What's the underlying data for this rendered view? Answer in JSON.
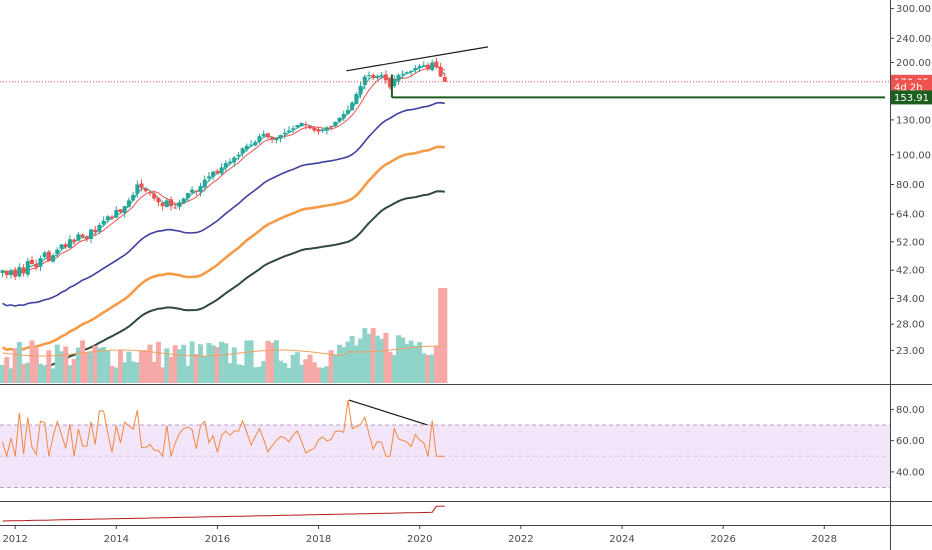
{
  "chart_data": {
    "type": "candlestick",
    "scale": "log",
    "colors": {
      "up": "#26a69a",
      "down": "#ef5350",
      "ma_fast": "#26a69a",
      "ma_mid": "#ef5350",
      "ma_50": "#3f3fa0",
      "ma_100": "#f59a45",
      "ma_200": "#2e4a3a",
      "rsi": "#f0883e",
      "rsi_band": "#f3e6fb",
      "price_line": "#ef5350",
      "support": "#1b5e20",
      "obv": "#b71c1c"
    },
    "x_axis": {
      "range": [
        2011.7,
        2029.3
      ],
      "tick_labels": [
        "2012",
        "2014",
        "2016",
        "2018",
        "2020",
        "2022",
        "2024",
        "2026",
        "2028"
      ]
    },
    "price_axis": {
      "range": [
        18,
        320
      ],
      "tick_values": [
        300,
        240,
        200,
        130,
        100,
        80,
        64,
        52,
        42,
        34,
        28,
        23
      ],
      "tick_labels": [
        "300.00",
        "240.00",
        "200.00",
        "130.00",
        "100.00",
        "80.00",
        "64.00",
        "52.00",
        "42.00",
        "34.00",
        "28.00",
        "23.00"
      ]
    },
    "price_tags": [
      {
        "value": 173.05,
        "label": "173.05",
        "color": "#ef5350"
      },
      {
        "value": 166.5,
        "label": "4d 2h",
        "color": "#ef5350"
      },
      {
        "value": 153.91,
        "label": "153.91",
        "color": "#1b5e20"
      }
    ],
    "rsi_axis": {
      "range": [
        22,
        95
      ],
      "tick_values": [
        80,
        60,
        40
      ],
      "tick_labels": [
        "80.00",
        "60.00",
        "40.00"
      ],
      "band": [
        30,
        70
      ]
    },
    "closes": [
      42,
      40.5,
      42,
      40,
      43,
      41,
      45,
      44,
      43,
      46,
      48,
      45,
      47,
      49,
      51,
      50,
      53,
      52,
      55,
      54,
      53,
      57,
      56,
      59,
      61,
      63,
      62,
      66,
      65,
      68,
      71,
      74,
      80,
      78,
      76,
      75,
      72,
      70,
      68,
      71,
      68,
      67,
      70,
      72,
      75,
      77,
      76,
      79,
      83,
      85,
      88,
      87,
      91,
      94,
      95,
      98,
      100,
      105,
      107,
      108,
      110,
      115,
      117,
      114,
      112,
      113,
      116,
      118,
      120,
      122,
      125,
      127,
      125,
      122,
      120,
      119,
      121,
      123,
      124,
      128,
      132,
      136,
      140,
      148,
      158,
      168,
      180,
      182,
      178,
      180,
      182,
      175,
      166,
      176,
      182,
      184,
      186,
      188,
      192,
      195,
      196,
      190,
      200,
      193,
      180,
      173
    ],
    "start_year": 2011.75,
    "bar_step": 0.0833,
    "moving_averages": [
      {
        "id": "ma_fast",
        "width": 1
      },
      {
        "id": "ma_mid",
        "width": 1
      },
      {
        "id": "ma_50",
        "width": 1.6
      },
      {
        "id": "ma_100",
        "width": 2.6
      },
      {
        "id": "ma_200",
        "width": 2
      }
    ],
    "trendlines": [
      {
        "pane": "price",
        "from": [
          2018.55,
          188
        ],
        "to": [
          2021.35,
          225
        ],
        "color": "#1a1a1a"
      },
      {
        "pane": "price",
        "from": [
          2019.45,
          153.91
        ],
        "to": [
          2029.2,
          153.91
        ],
        "color": "#1b5e20"
      },
      {
        "pane": "price",
        "from": [
          2019.45,
          153.91
        ],
        "to": [
          2019.45,
          183
        ],
        "color": "#1b5e20"
      },
      {
        "pane": "rsi",
        "from": [
          2018.6,
          86
        ],
        "to": [
          2022.4,
          47
        ],
        "color": "#1a1a1a"
      }
    ]
  }
}
